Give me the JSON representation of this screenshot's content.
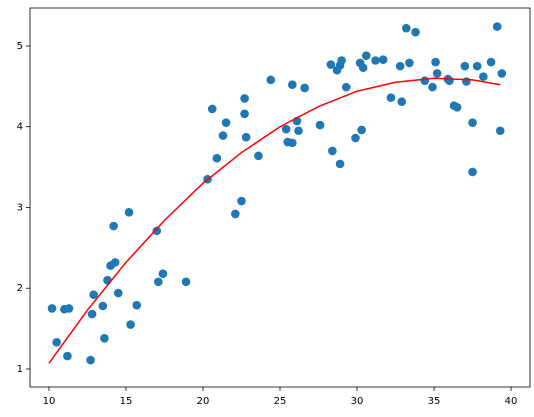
{
  "chart_data": {
    "type": "scatter",
    "xlim": [
      8.77,
      41.23
    ],
    "ylim": [
      0.777,
      5.47
    ],
    "xticks": [
      10,
      15,
      20,
      25,
      30,
      35,
      40
    ],
    "yticks": [
      1,
      2,
      3,
      4,
      5
    ],
    "grid": false,
    "series": [
      {
        "type": "scatter",
        "color": "#1f77b4",
        "x": [
          10.2,
          10.5,
          11.0,
          11.2,
          11.3,
          12.7,
          12.8,
          12.9,
          13.5,
          13.6,
          13.8,
          14.0,
          14.2,
          14.3,
          14.5,
          15.2,
          15.3,
          15.7,
          17.0,
          17.1,
          17.4,
          18.9,
          20.3,
          20.6,
          20.9,
          21.3,
          21.5,
          22.1,
          22.5,
          22.7,
          22.7,
          22.8,
          23.6,
          24.4,
          25.4,
          25.5,
          25.8,
          25.8,
          26.1,
          26.2,
          26.6,
          27.6,
          28.3,
          28.4,
          28.7,
          28.9,
          28.9,
          29.0,
          29.3,
          29.9,
          30.2,
          30.3,
          30.4,
          30.6,
          31.2,
          31.7,
          32.2,
          32.8,
          32.9,
          33.2,
          33.4,
          33.8,
          34.4,
          34.9,
          35.1,
          35.2,
          35.9,
          36.0,
          36.3,
          36.5,
          37.0,
          37.1,
          37.5,
          37.5,
          37.8,
          38.2,
          38.7,
          39.1,
          39.3,
          39.4
        ],
        "y": [
          1.75,
          1.33,
          1.74,
          1.16,
          1.75,
          1.11,
          1.68,
          1.92,
          1.78,
          1.38,
          2.1,
          2.28,
          2.77,
          2.32,
          1.94,
          2.94,
          1.55,
          1.79,
          2.71,
          2.08,
          2.18,
          2.08,
          3.35,
          4.22,
          3.61,
          3.89,
          4.05,
          2.92,
          3.08,
          4.16,
          4.35,
          3.87,
          3.64,
          4.58,
          3.97,
          3.81,
          3.8,
          4.52,
          4.07,
          3.95,
          4.48,
          4.02,
          4.77,
          3.7,
          4.7,
          3.54,
          4.76,
          4.82,
          4.49,
          3.86,
          4.79,
          3.96,
          4.73,
          4.88,
          4.82,
          4.83,
          4.36,
          4.75,
          4.31,
          5.22,
          4.79,
          5.17,
          4.57,
          4.49,
          4.8,
          4.66,
          4.59,
          4.57,
          4.26,
          4.24,
          4.75,
          4.56,
          4.05,
          3.44,
          4.75,
          4.62,
          4.8,
          5.24,
          3.95,
          4.66
        ]
      },
      {
        "type": "line",
        "color": "#ff0000",
        "x": [
          10,
          12.5,
          15,
          17.5,
          20,
          22.5,
          25,
          27.5,
          30,
          32.5,
          35,
          37.5,
          39.3
        ],
        "y": [
          1.07,
          1.73,
          2.32,
          2.84,
          3.3,
          3.68,
          4.0,
          4.25,
          4.44,
          4.55,
          4.6,
          4.58,
          4.52
        ]
      }
    ]
  }
}
